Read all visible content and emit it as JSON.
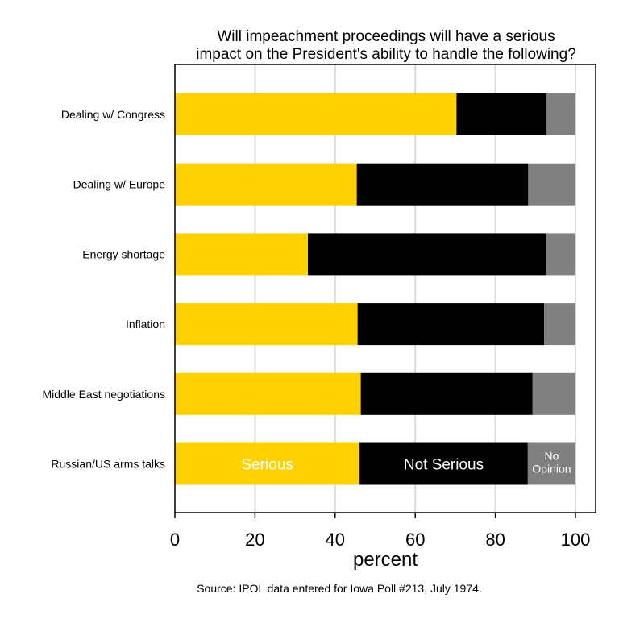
{
  "chart_data": {
    "type": "bar",
    "orientation": "horizontal",
    "stacked": true,
    "title": [
      "Will impeachment proceedings will have a serious",
      "impact on the President's ability to handle the following?"
    ],
    "xlabel": "percent",
    "xlim": [
      0,
      100
    ],
    "xticks": [
      0,
      20,
      40,
      60,
      80,
      100
    ],
    "grid": "vertical",
    "source": "Source: IPOL data entered for Iowa Poll #213, July 1974.",
    "categories": [
      "Dealing w/ Congress",
      "Dealing w/ Europe",
      "Energy shortage",
      "Inflation",
      "Middle East negotiations",
      "Russian/US arms talks"
    ],
    "series": [
      {
        "name": "Serious",
        "color": "#FFD100",
        "label_color": "#000000",
        "values": [
          70.3,
          45.4,
          33.2,
          45.6,
          46.4,
          46.1
        ]
      },
      {
        "name": "Not Serious",
        "color": "#000000",
        "label_color": "#FFFFFF",
        "values": [
          22.3,
          42.8,
          59.6,
          46.6,
          42.9,
          42.0
        ]
      },
      {
        "name": "No Opinion",
        "color": "#808080",
        "label_color": "#FFFFFF",
        "values": [
          7.4,
          11.8,
          7.2,
          7.8,
          10.7,
          11.9
        ]
      }
    ],
    "series_labels_on_bar": [
      "Serious",
      "Not Serious",
      "No Opinion"
    ]
  }
}
